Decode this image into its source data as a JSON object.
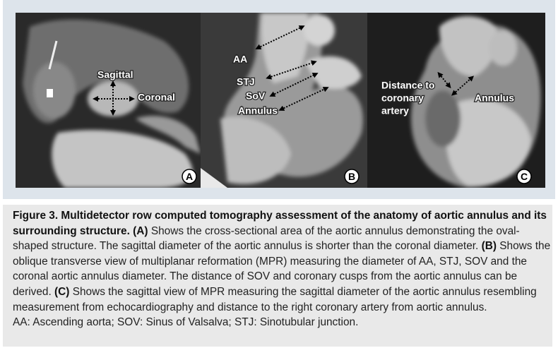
{
  "figure": {
    "panels": [
      {
        "letter": "A",
        "labels": [
          "Sagittal",
          "Coronal"
        ]
      },
      {
        "letter": "B",
        "labels": [
          "AA",
          "STJ",
          "SoV",
          "Annulus"
        ]
      },
      {
        "letter": "C",
        "labels": [
          "Distance to",
          "coronary",
          "artery",
          "Annulus"
        ]
      }
    ],
    "caption": {
      "title": "Figure 3. Multidetector row computed tomography assessment of the anatomy of aortic annulus and its surrounding structure.",
      "parts": [
        {
          "label": "(A)",
          "text": "Shows the cross-sectional area of the aortic annulus demonstrating the oval-shaped structure. The sagittal diameter of the aortic annulus is shorter than the coronal diameter."
        },
        {
          "label": "(B)",
          "text": "Shows the oblique transverse view of multiplanar reformation (MPR) measuring the diameter of AA, STJ, SOV and the coronal aortic annulus diameter. The distance of SOV and coronary cusps from the aortic annulus can be derived."
        },
        {
          "label": "(C)",
          "text": "Shows the sagittal view of MPR measuring the sagittal diameter of the aortic annulus resembling measurement from echocardiography and distance to the right coronary artery from aortic annulus."
        }
      ],
      "abbreviations": "AA: Ascending aorta; SOV: Sinus of Valsalva; STJ: Sinotubular junction."
    }
  }
}
